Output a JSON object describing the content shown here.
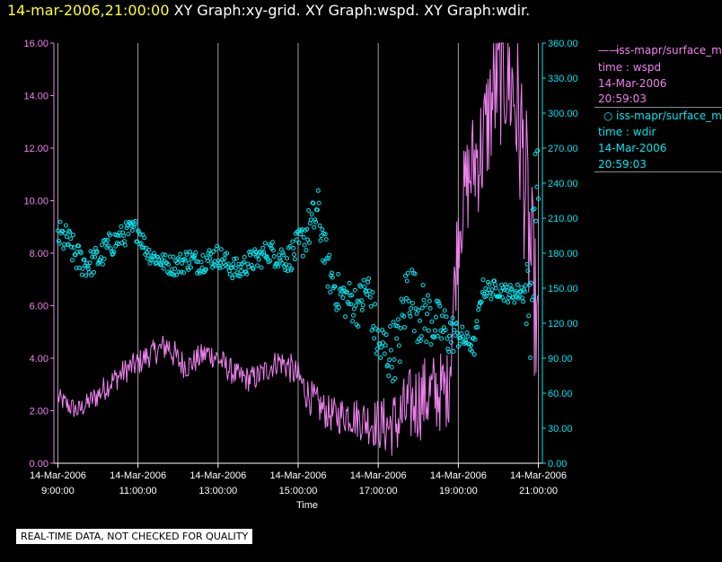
{
  "header": {
    "date": "14-mar-2006,21:00:00",
    "titles": "XY Graph:xy-grid.  XY Graph:wspd.  XY Graph:wdir."
  },
  "legend": {
    "series1": {
      "name": "iss-mapr/surface_m",
      "axis": "time : wspd",
      "date": "14-Mar-2006",
      "time": "20:59:03"
    },
    "series2": {
      "name": "iss-mapr/surface_m",
      "axis": "time : wdir",
      "date": "14-Mar-2006",
      "time": "20:59:03"
    }
  },
  "notice": "REAL-TIME DATA, NOT CHECKED FOR QUALITY",
  "colors": {
    "wspd": "#ee82ee",
    "wdir": "#00e5ee",
    "grid": "#a0a0a0",
    "axis": "#ffffff"
  },
  "chart_data": {
    "type": "line",
    "xlabel": "Time",
    "x_range_hours": [
      8.9,
      21.1
    ],
    "x_ticks": [
      {
        "hour": 9,
        "date": "14-Mar-2006",
        "time": "9:00:00"
      },
      {
        "hour": 11,
        "date": "14-Mar-2006",
        "time": "11:00:00"
      },
      {
        "hour": 13,
        "date": "14-Mar-2006",
        "time": "13:00:00"
      },
      {
        "hour": 15,
        "date": "14-Mar-2006",
        "time": "15:00:00"
      },
      {
        "hour": 17,
        "date": "14-Mar-2006",
        "time": "17:00:00"
      },
      {
        "hour": 19,
        "date": "14-Mar-2006",
        "time": "19:00:00"
      },
      {
        "hour": 21,
        "date": "14-Mar-2006",
        "time": "21:00:00"
      }
    ],
    "y_left": {
      "range": [
        0,
        16
      ],
      "ticks": [
        "0.00",
        "2.00",
        "4.00",
        "6.00",
        "8.00",
        "10.00",
        "12.00",
        "14.00",
        "16.00"
      ]
    },
    "y_right": {
      "range": [
        0,
        360
      ],
      "ticks": [
        "0.00",
        "30.00",
        "60.00",
        "90.00",
        "120.00",
        "150.00",
        "180.00",
        "210.00",
        "240.00",
        "270.00",
        "300.00",
        "330.00",
        "360.00"
      ]
    },
    "series": [
      {
        "name": "wspd",
        "style": "line",
        "axis": "left",
        "x": [
          9.0,
          9.25,
          9.5,
          9.75,
          10.0,
          10.25,
          10.5,
          10.75,
          11.0,
          11.25,
          11.5,
          11.75,
          12.0,
          12.25,
          12.5,
          12.75,
          13.0,
          13.25,
          13.5,
          13.75,
          14.0,
          14.25,
          14.5,
          14.75,
          15.0,
          15.25,
          15.5,
          15.75,
          16.0,
          16.25,
          16.5,
          16.75,
          17.0,
          17.25,
          17.5,
          17.75,
          18.0,
          18.25,
          18.5,
          18.75,
          19.0,
          19.2,
          19.4,
          19.6,
          19.8,
          20.0,
          20.2,
          20.4,
          20.6,
          20.8,
          21.0
        ],
        "y": [
          2.5,
          2.2,
          2.0,
          2.3,
          2.6,
          3.0,
          3.3,
          3.6,
          3.8,
          4.1,
          4.3,
          4.5,
          3.9,
          3.7,
          4.0,
          4.2,
          4.0,
          3.6,
          3.3,
          3.2,
          3.3,
          3.6,
          3.9,
          3.7,
          3.3,
          2.6,
          2.2,
          1.9,
          1.8,
          1.9,
          1.7,
          1.6,
          1.5,
          1.4,
          1.6,
          2.1,
          2.4,
          2.6,
          2.7,
          2.8,
          9.0,
          10.5,
          11.5,
          12.0,
          13.5,
          14.8,
          15.0,
          14.0,
          12.0,
          8.0,
          4.5
        ],
        "noise": [
          0.4,
          0.4,
          0.4,
          0.4,
          0.5,
          0.5,
          0.5,
          0.5,
          0.5,
          0.5,
          0.5,
          0.6,
          0.6,
          0.5,
          0.5,
          0.5,
          0.5,
          0.5,
          0.5,
          0.5,
          0.5,
          0.5,
          0.5,
          0.6,
          0.6,
          0.7,
          0.7,
          0.7,
          0.7,
          0.8,
          0.8,
          0.9,
          1.0,
          1.2,
          1.4,
          1.5,
          1.6,
          1.6,
          1.6,
          1.5,
          1.8,
          2.0,
          2.2,
          2.4,
          2.6,
          2.8,
          3.0,
          3.0,
          3.5,
          3.5,
          2.5
        ]
      },
      {
        "name": "wdir",
        "style": "scatter",
        "axis": "right",
        "x": [
          9.0,
          9.25,
          9.5,
          9.75,
          10.0,
          10.25,
          10.5,
          10.75,
          11.0,
          11.25,
          11.5,
          11.75,
          12.0,
          12.25,
          12.5,
          12.75,
          13.0,
          13.25,
          13.5,
          13.75,
          14.0,
          14.25,
          14.5,
          14.75,
          15.0,
          15.25,
          15.5,
          15.75,
          16.0,
          16.25,
          16.5,
          16.75,
          17.0,
          17.25,
          17.5,
          17.75,
          18.0,
          18.25,
          18.5,
          18.75,
          19.0,
          19.2,
          19.4,
          19.6,
          19.8,
          20.0,
          20.2,
          20.4,
          20.6,
          20.8,
          21.0
        ],
        "y": [
          195,
          190,
          175,
          170,
          175,
          185,
          192,
          198,
          200,
          180,
          175,
          170,
          170,
          175,
          172,
          175,
          178,
          170,
          165,
          172,
          175,
          182,
          178,
          175,
          185,
          200,
          215,
          165,
          145,
          140,
          135,
          150,
          100,
          95,
          100,
          155,
          130,
          125,
          118,
          112,
          110,
          105,
          100,
          150,
          148,
          150,
          146,
          145,
          148,
          140,
          270
        ],
        "noise": [
          14,
          14,
          14,
          12,
          12,
          12,
          10,
          10,
          10,
          8,
          8,
          8,
          10,
          10,
          10,
          10,
          10,
          10,
          10,
          10,
          10,
          10,
          12,
          12,
          15,
          18,
          20,
          18,
          18,
          18,
          18,
          20,
          24,
          26,
          28,
          30,
          28,
          26,
          22,
          22,
          12,
          8,
          8,
          8,
          8,
          8,
          8,
          8,
          8,
          50,
          50
        ]
      }
    ]
  }
}
